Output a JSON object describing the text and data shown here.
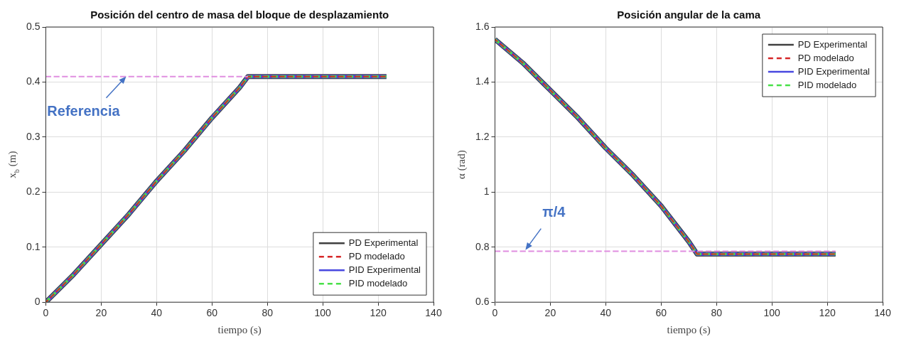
{
  "chart_data": [
    {
      "type": "line",
      "title": "Posición del centro de masa del bloque de desplazamiento",
      "xlabel": "tiempo (s)",
      "ylabel": "x$_{b}$ (m)",
      "xlim": [
        0,
        140
      ],
      "xticks": [
        0,
        20,
        40,
        60,
        80,
        100,
        120,
        140
      ],
      "ylim": [
        0,
        0.5
      ],
      "yticks": [
        0,
        0.1,
        0.2,
        0.3,
        0.4,
        0.5
      ],
      "grid": true,
      "legend": "bottom right",
      "series": [
        {
          "color": "#e08ee0",
          "line_style": "dashed",
          "x": [
            0,
            73
          ],
          "values": [
            0.41,
            0.41
          ]
        },
        {
          "name": "PD Experimental",
          "color": "#404040",
          "line_style": "solid",
          "x": [
            0,
            10,
            20,
            30,
            40,
            50,
            60,
            70,
            73,
            123
          ],
          "values": [
            0,
            0.05,
            0.105,
            0.16,
            0.22,
            0.275,
            0.335,
            0.39,
            0.41,
            0.41
          ]
        },
        {
          "name": "PD modelado",
          "color": "#d62728",
          "line_style": "dashed",
          "x": [
            0,
            10,
            20,
            30,
            40,
            50,
            60,
            70,
            73,
            123
          ],
          "values": [
            0,
            0.05,
            0.105,
            0.16,
            0.22,
            0.275,
            0.335,
            0.39,
            0.41,
            0.41
          ]
        },
        {
          "name": "PID Experimental",
          "color": "#4848e0",
          "line_style": "solid",
          "x": [
            0,
            10,
            20,
            30,
            40,
            50,
            60,
            70,
            73,
            123
          ],
          "values": [
            0,
            0.05,
            0.105,
            0.16,
            0.22,
            0.275,
            0.335,
            0.39,
            0.41,
            0.41
          ]
        },
        {
          "name": "PID modelado",
          "color": "#48e048",
          "line_style": "dashed",
          "x": [
            0,
            10,
            20,
            30,
            40,
            50,
            60,
            70,
            73,
            123
          ],
          "values": [
            0,
            0.05,
            0.105,
            0.16,
            0.22,
            0.275,
            0.335,
            0.39,
            0.41,
            0.41
          ]
        }
      ],
      "annotations": [
        {
          "text": "Referencia",
          "x": 29,
          "y": 0.41
        }
      ]
    },
    {
      "type": "line",
      "title": "Posición angular de la cama",
      "xlabel": "tiempo (s)",
      "ylabel": "α (rad)",
      "xlim": [
        0,
        140
      ],
      "xticks": [
        0,
        20,
        40,
        60,
        80,
        100,
        120,
        140
      ],
      "ylim": [
        0.6,
        1.6
      ],
      "yticks": [
        0.6,
        0.8,
        1,
        1.2,
        1.4,
        1.6
      ],
      "grid": true,
      "legend": "top right",
      "series": [
        {
          "color": "#e08ee0",
          "line_style": "dashed",
          "x": [
            0,
            123
          ],
          "values": [
            0.785,
            0.785
          ]
        },
        {
          "name": "PD Experimental",
          "color": "#404040",
          "line_style": "solid",
          "x": [
            0,
            10,
            20,
            30,
            40,
            50,
            60,
            70,
            73,
            123
          ],
          "values": [
            1.555,
            1.47,
            1.37,
            1.27,
            1.16,
            1.06,
            0.95,
            0.82,
            0.775,
            0.775
          ]
        },
        {
          "name": "PD modelado",
          "color": "#d62728",
          "line_style": "dashed",
          "x": [
            0,
            10,
            20,
            30,
            40,
            50,
            60,
            70,
            73,
            123
          ],
          "values": [
            1.555,
            1.47,
            1.37,
            1.27,
            1.16,
            1.06,
            0.95,
            0.82,
            0.775,
            0.775
          ]
        },
        {
          "name": "PID Experimental",
          "color": "#4848e0",
          "line_style": "solid",
          "x": [
            0,
            10,
            20,
            30,
            40,
            50,
            60,
            70,
            73,
            123
          ],
          "values": [
            1.555,
            1.47,
            1.37,
            1.27,
            1.16,
            1.06,
            0.95,
            0.82,
            0.775,
            0.775
          ]
        },
        {
          "name": "PID modelado",
          "color": "#48e048",
          "line_style": "dashed",
          "x": [
            0,
            10,
            20,
            30,
            40,
            50,
            60,
            70,
            73,
            123
          ],
          "values": [
            1.555,
            1.47,
            1.37,
            1.27,
            1.16,
            1.06,
            0.95,
            0.82,
            0.775,
            0.775
          ]
        }
      ],
      "annotations": [
        {
          "text": "π/4",
          "x": 11,
          "y": 0.79
        }
      ]
    }
  ]
}
